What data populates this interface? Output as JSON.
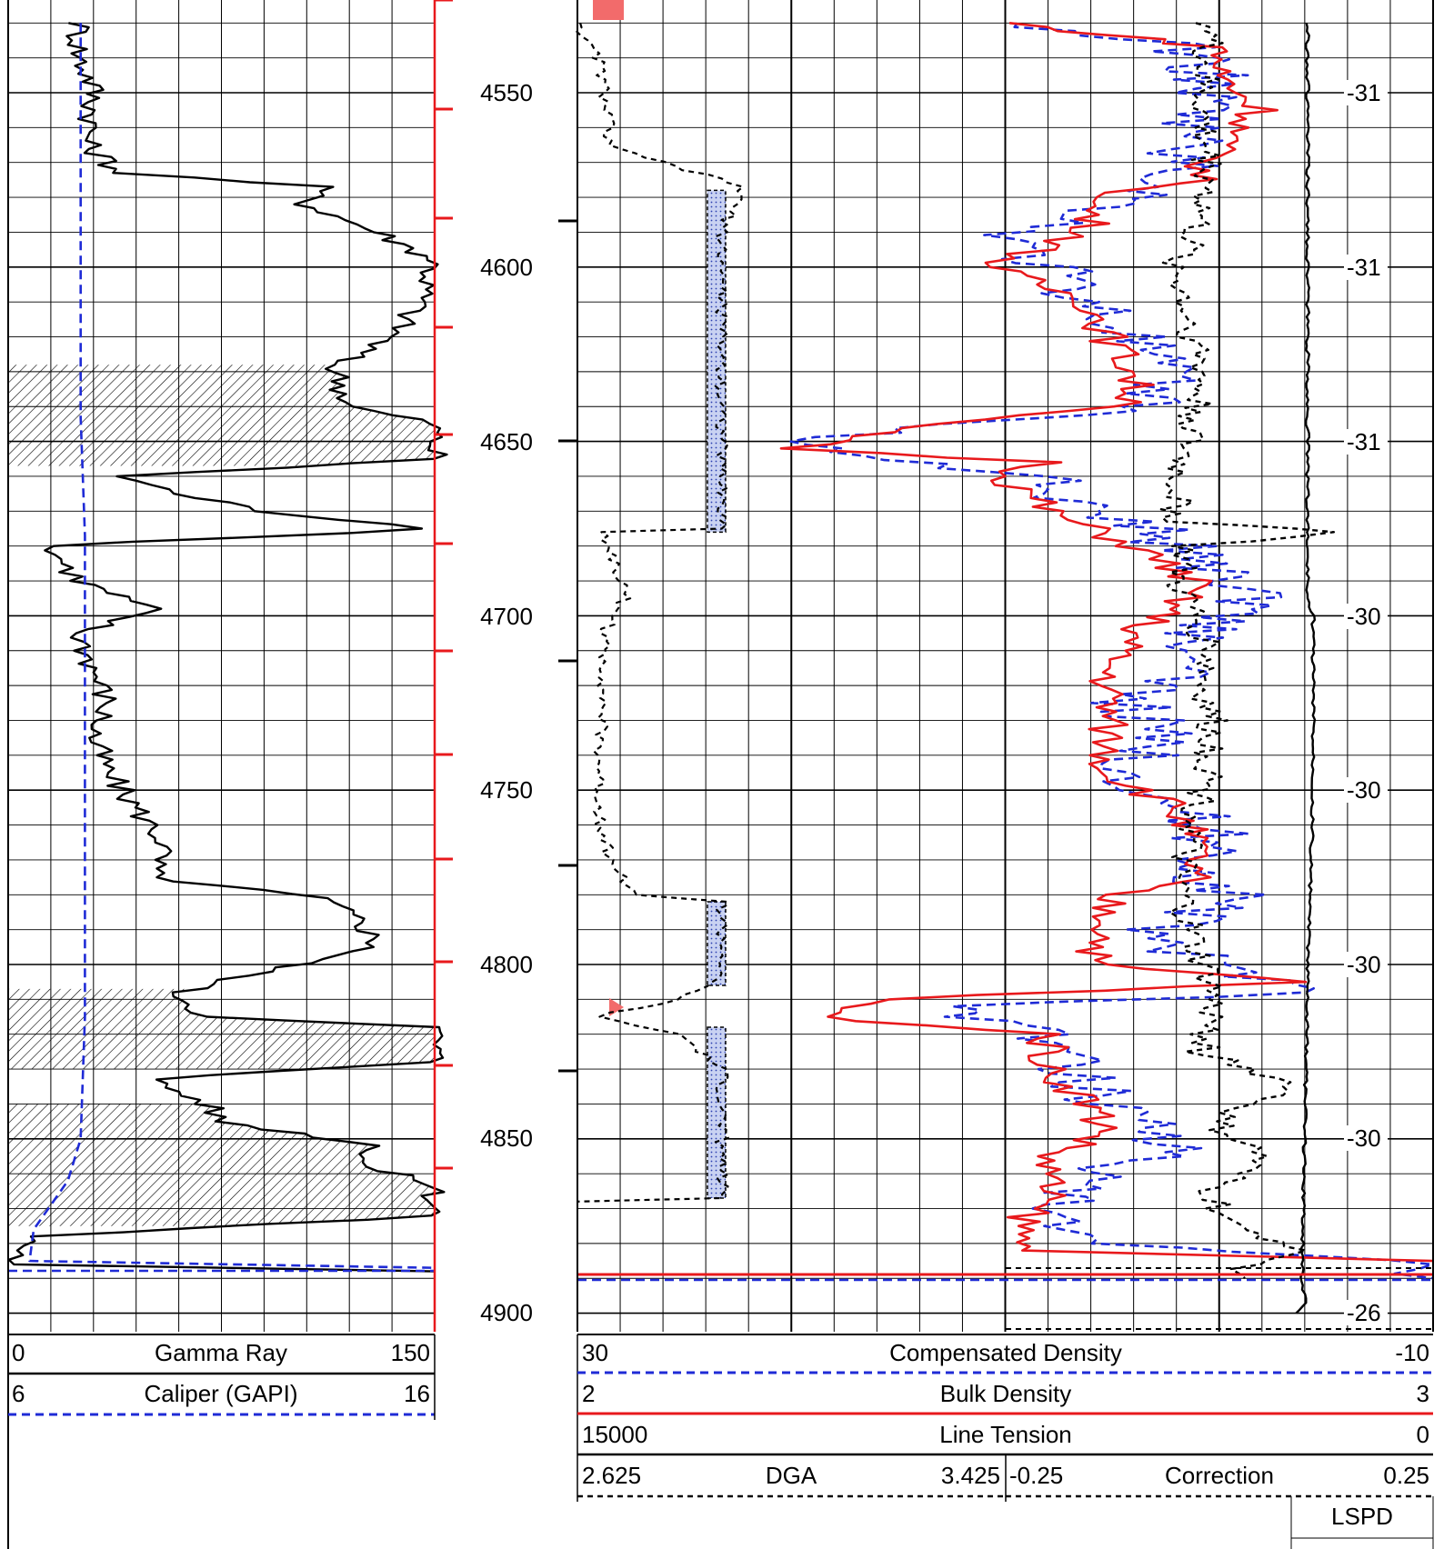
{
  "colors": {
    "grid": "#000000",
    "red": "#e8191c",
    "blue": "#1f2bd6",
    "black": "#000000",
    "sand_fill": "#b7c3ea"
  },
  "depth_ticks": [
    "4550",
    "4600",
    "4650",
    "4700",
    "4750",
    "4800",
    "4850",
    "4900"
  ],
  "tension_scale_labels": [
    "-31",
    "-31",
    "-31",
    "-30",
    "-30",
    "-30",
    "-30",
    "-26"
  ],
  "headers": {
    "track1": [
      {
        "left": "0",
        "name": "Gamma Ray",
        "right": "150",
        "line": "solid-black"
      },
      {
        "left": "6",
        "name": "Caliper (GAPI)",
        "right": "16",
        "line": "dashed-blue"
      }
    ],
    "track2": [
      {
        "left": "30",
        "name": "Compensated Density",
        "right": "-10",
        "line": "dashed-blue"
      },
      {
        "left": "2",
        "name": "Bulk Density",
        "right": "3",
        "line": "solid-red"
      },
      {
        "left": "15000",
        "name": "Line Tension",
        "right": "0",
        "line": "solid-black"
      }
    ],
    "dga": {
      "left": "2.625",
      "name": "DGA",
      "right": "3.425",
      "line": "dashed-black"
    },
    "correction": {
      "left": "-0.25",
      "name": "Correction",
      "right": "0.25",
      "line": "dashed-black"
    },
    "lspd": "LSPD"
  },
  "chart_data": {
    "type": "line",
    "title": "",
    "depth_axis": {
      "range": [
        4530,
        4905
      ],
      "ticks": [
        4550,
        4600,
        4650,
        4700,
        4750,
        4800,
        4850,
        4900
      ]
    },
    "grid": true,
    "series": [
      {
        "name": "Gamma Ray",
        "track": 1,
        "scale": [
          0,
          150
        ],
        "points": [
          [
            4530,
            25
          ],
          [
            4540,
            25
          ],
          [
            4548,
            30
          ],
          [
            4555,
            30
          ],
          [
            4565,
            28
          ],
          [
            4573,
            40
          ],
          [
            4577,
            110
          ],
          [
            4582,
            105
          ],
          [
            4590,
            130
          ],
          [
            4598,
            150
          ],
          [
            4610,
            145
          ],
          [
            4620,
            135
          ],
          [
            4628,
            115
          ],
          [
            4640,
            120
          ],
          [
            4645,
            150
          ],
          [
            4655,
            150
          ],
          [
            4660,
            40
          ],
          [
            4665,
            60
          ],
          [
            4670,
            90
          ],
          [
            4675,
            150
          ],
          [
            4680,
            15
          ],
          [
            4690,
            25
          ],
          [
            4698,
            50
          ],
          [
            4705,
            25
          ],
          [
            4715,
            30
          ],
          [
            4725,
            35
          ],
          [
            4735,
            30
          ],
          [
            4745,
            35
          ],
          [
            4755,
            45
          ],
          [
            4765,
            55
          ],
          [
            4775,
            50
          ],
          [
            4781,
            110
          ],
          [
            4788,
            125
          ],
          [
            4795,
            130
          ],
          [
            4802,
            90
          ],
          [
            4808,
            60
          ],
          [
            4815,
            70
          ],
          [
            4818,
            150
          ],
          [
            4828,
            150
          ],
          [
            4833,
            50
          ],
          [
            4840,
            70
          ],
          [
            4845,
            75
          ],
          [
            4852,
            130
          ],
          [
            4858,
            125
          ],
          [
            4863,
            150
          ],
          [
            4872,
            150
          ],
          [
            4878,
            10
          ],
          [
            4882,
            5
          ],
          [
            4886,
            2
          ],
          [
            4888,
            150
          ]
        ]
      },
      {
        "name": "Caliper (GAPI)",
        "track": 1,
        "scale": [
          6,
          16
        ],
        "points": [
          [
            4530,
            7.7
          ],
          [
            4640,
            7.7
          ],
          [
            4643,
            7.7
          ],
          [
            4677,
            7.8
          ],
          [
            4680,
            7.8
          ],
          [
            4815,
            7.8
          ],
          [
            4850,
            7.7
          ],
          [
            4862,
            7.4
          ],
          [
            4876,
            6.6
          ],
          [
            4885,
            6.5
          ],
          [
            4887,
            16
          ]
        ]
      },
      {
        "name": "Compensated Density",
        "track": 2,
        "scale": [
          30,
          -10
        ],
        "points": [
          [
            4530,
            10
          ],
          [
            4537,
            1.5
          ],
          [
            4545,
            0.5
          ],
          [
            4555,
            1
          ],
          [
            4565,
            1.5
          ],
          [
            4577,
            2.5
          ],
          [
            4585,
            6
          ],
          [
            4592,
            10
          ],
          [
            4600,
            8
          ],
          [
            4610,
            6
          ],
          [
            4620,
            4
          ],
          [
            4630,
            3
          ],
          [
            4640,
            3
          ],
          [
            4650,
            20
          ],
          [
            4653,
            18
          ],
          [
            4660,
            8
          ],
          [
            4665,
            9
          ],
          [
            4673,
            4
          ],
          [
            4680,
            2
          ],
          [
            4690,
            -1
          ],
          [
            4697,
            -2
          ],
          [
            4705,
            1
          ],
          [
            4715,
            2
          ],
          [
            4725,
            4
          ],
          [
            4735,
            3
          ],
          [
            4745,
            4
          ],
          [
            4755,
            2
          ],
          [
            4765,
            0
          ],
          [
            4775,
            1
          ],
          [
            4780,
            -1
          ],
          [
            4790,
            3
          ],
          [
            4800,
            1
          ],
          [
            4808,
            -6
          ],
          [
            4812,
            13
          ],
          [
            4815,
            11
          ],
          [
            4820,
            8
          ],
          [
            4830,
            7
          ],
          [
            4840,
            5
          ],
          [
            4848,
            2
          ],
          [
            4855,
            3
          ],
          [
            4862,
            7
          ],
          [
            4870,
            8
          ],
          [
            4880,
            7
          ],
          [
            4886,
            -10
          ],
          [
            4890,
            -10
          ]
        ]
      },
      {
        "name": "Bulk Density",
        "track": 2,
        "scale": [
          2,
          3
        ],
        "points": [
          [
            4530,
            2.5
          ],
          [
            4537,
            2.75
          ],
          [
            4545,
            2.75
          ],
          [
            4555,
            2.8
          ],
          [
            4565,
            2.75
          ],
          [
            4576,
            2.72
          ],
          [
            4580,
            2.6
          ],
          [
            4590,
            2.6
          ],
          [
            4600,
            2.48
          ],
          [
            4610,
            2.6
          ],
          [
            4620,
            2.62
          ],
          [
            4630,
            2.65
          ],
          [
            4640,
            2.65
          ],
          [
            4645,
            2.4
          ],
          [
            4652,
            2.25
          ],
          [
            4656,
            2.55
          ],
          [
            4660,
            2.5
          ],
          [
            4670,
            2.55
          ],
          [
            4680,
            2.65
          ],
          [
            4690,
            2.72
          ],
          [
            4697,
            2.7
          ],
          [
            4705,
            2.65
          ],
          [
            4715,
            2.62
          ],
          [
            4725,
            2.62
          ],
          [
            4735,
            2.62
          ],
          [
            4745,
            2.62
          ],
          [
            4755,
            2.7
          ],
          [
            4765,
            2.72
          ],
          [
            4775,
            2.72
          ],
          [
            4780,
            2.62
          ],
          [
            4790,
            2.62
          ],
          [
            4800,
            2.6
          ],
          [
            4805,
            2.85
          ],
          [
            4810,
            2.35
          ],
          [
            4815,
            2.28
          ],
          [
            4820,
            2.55
          ],
          [
            4830,
            2.55
          ],
          [
            4840,
            2.6
          ],
          [
            4848,
            2.62
          ],
          [
            4855,
            2.55
          ],
          [
            4865,
            2.55
          ],
          [
            4875,
            2.52
          ],
          [
            4882,
            2.52
          ],
          [
            4885,
            3
          ]
        ]
      },
      {
        "name": "Line Tension",
        "track": 2,
        "scale": [
          15000,
          0
        ],
        "points": [
          [
            4530,
            2200
          ],
          [
            4560,
            2200
          ],
          [
            4600,
            2200
          ],
          [
            4650,
            2200
          ],
          [
            4695,
            2200
          ],
          [
            4700,
            2100
          ],
          [
            4750,
            2100
          ],
          [
            4800,
            2200
          ],
          [
            4850,
            2250
          ],
          [
            4892,
            2300
          ],
          [
            4897,
            2200
          ],
          [
            4900,
            2400
          ]
        ]
      },
      {
        "name": "Correction",
        "track": 2,
        "scale": [
          -0.25,
          0.25
        ],
        "points": [
          [
            4530,
            0.12
          ],
          [
            4545,
            0.115
          ],
          [
            4560,
            0.115
          ],
          [
            4575,
            0.12
          ],
          [
            4590,
            0.11
          ],
          [
            4600,
            0.1
          ],
          [
            4610,
            0.105
          ],
          [
            4620,
            0.11
          ],
          [
            4630,
            0.115
          ],
          [
            4645,
            0.11
          ],
          [
            4660,
            0.1
          ],
          [
            4673,
            0.1
          ],
          [
            4676,
            0.2
          ],
          [
            4680,
            0.105
          ],
          [
            4690,
            0.1
          ],
          [
            4700,
            0.11
          ],
          [
            4710,
            0.12
          ],
          [
            4720,
            0.115
          ],
          [
            4730,
            0.12
          ],
          [
            4745,
            0.12
          ],
          [
            4760,
            0.11
          ],
          [
            4775,
            0.1
          ],
          [
            4785,
            0.105
          ],
          [
            4795,
            0.11
          ],
          [
            4805,
            0.12
          ],
          [
            4815,
            0.12
          ],
          [
            4825,
            0.115
          ],
          [
            4835,
            0.17
          ],
          [
            4845,
            0.12
          ],
          [
            4855,
            0.15
          ],
          [
            4865,
            0.12
          ],
          [
            4875,
            0.13
          ],
          [
            4882,
            0.18
          ],
          [
            4886,
            0.14
          ],
          [
            4890,
            0.14
          ]
        ]
      },
      {
        "name": "DGA",
        "track": 2,
        "scale": [
          2.625,
          3.425
        ],
        "points": [
          [
            4530,
            2.63
          ],
          [
            4535,
            2.63
          ],
          [
            4540,
            2.645
          ],
          [
            4550,
            2.65
          ],
          [
            4560,
            2.655
          ],
          [
            4565,
            2.65
          ],
          [
            4577,
            2.78
          ],
          [
            4590,
            2.76
          ],
          [
            4600,
            2.76
          ],
          [
            4620,
            2.76
          ],
          [
            4640,
            2.76
          ],
          [
            4660,
            2.76
          ],
          [
            4675,
            2.76
          ],
          [
            4676,
            2.65
          ],
          [
            4685,
            2.66
          ],
          [
            4695,
            2.67
          ],
          [
            4705,
            2.65
          ],
          [
            4720,
            2.65
          ],
          [
            4740,
            2.645
          ],
          [
            4755,
            2.645
          ],
          [
            4770,
            2.655
          ],
          [
            4780,
            2.68
          ],
          [
            4782,
            2.76
          ],
          [
            4790,
            2.76
          ],
          [
            4800,
            2.76
          ],
          [
            4805,
            2.75
          ],
          [
            4810,
            2.72
          ],
          [
            4815,
            2.64
          ],
          [
            4820,
            2.72
          ],
          [
            4830,
            2.76
          ],
          [
            4845,
            2.76
          ],
          [
            4858,
            2.76
          ],
          [
            4867,
            2.76
          ],
          [
            4868,
            2.625
          ]
        ]
      }
    ]
  }
}
